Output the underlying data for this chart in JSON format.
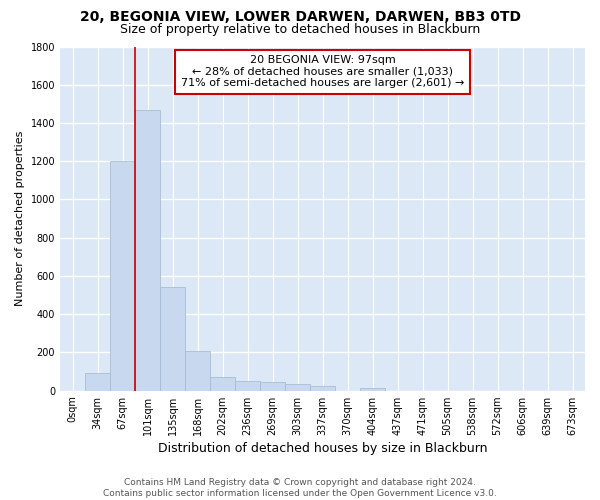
{
  "title": "20, BEGONIA VIEW, LOWER DARWEN, DARWEN, BB3 0TD",
  "subtitle": "Size of property relative to detached houses in Blackburn",
  "xlabel": "Distribution of detached houses by size in Blackburn",
  "ylabel": "Number of detached properties",
  "bar_color": "#c8d8ee",
  "bar_edge_color": "#a0b8d0",
  "background_color": "#dce8f5",
  "grid_color": "#ffffff",
  "fig_background": "#ffffff",
  "categories": [
    "0sqm",
    "34sqm",
    "67sqm",
    "101sqm",
    "135sqm",
    "168sqm",
    "202sqm",
    "236sqm",
    "269sqm",
    "303sqm",
    "337sqm",
    "370sqm",
    "404sqm",
    "437sqm",
    "471sqm",
    "505sqm",
    "538sqm",
    "572sqm",
    "606sqm",
    "639sqm",
    "673sqm"
  ],
  "values": [
    0,
    95,
    1200,
    1470,
    540,
    205,
    70,
    50,
    45,
    35,
    25,
    0,
    15,
    0,
    0,
    0,
    0,
    0,
    0,
    0,
    0
  ],
  "ylim": [
    0,
    1800
  ],
  "yticks": [
    0,
    200,
    400,
    600,
    800,
    1000,
    1200,
    1400,
    1600,
    1800
  ],
  "annotation_text": "20 BEGONIA VIEW: 97sqm\n← 28% of detached houses are smaller (1,033)\n71% of semi-detached houses are larger (2,601) →",
  "annotation_box_color": "#ffffff",
  "annotation_box_edge": "#cc0000",
  "vline_color": "#cc0000",
  "footer_text": "Contains HM Land Registry data © Crown copyright and database right 2024.\nContains public sector information licensed under the Open Government Licence v3.0.",
  "title_fontsize": 10,
  "subtitle_fontsize": 9,
  "axis_label_fontsize": 9,
  "ylabel_fontsize": 8,
  "tick_fontsize": 7,
  "annotation_fontsize": 8,
  "footer_fontsize": 6.5
}
